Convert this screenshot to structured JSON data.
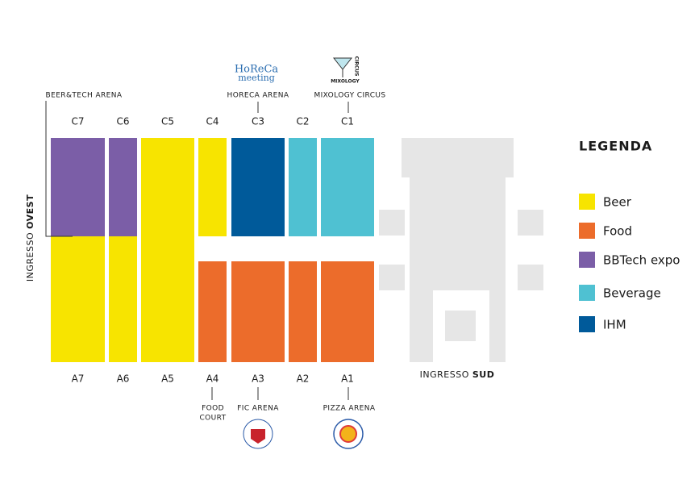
{
  "halls": [
    {
      "label": "C7",
      "color": "#7b5ea7"
    },
    {
      "label": "C6",
      "color": "#7b5ea7"
    },
    {
      "label": "C5",
      "color": "#f7e400"
    },
    {
      "label": "C4",
      "color": "#f7e400"
    },
    {
      "label": "C3",
      "color": "#005a9a"
    },
    {
      "label": "C2",
      "color": "#4fc1d2"
    },
    {
      "label": "C1",
      "color": "#4fc1d2"
    },
    {
      "label": "A7",
      "color": "#f7e400"
    },
    {
      "label": "A6",
      "color": "#f7e400"
    },
    {
      "label": "A5",
      "color": "#f7e400"
    },
    {
      "label": "A4",
      "color": "#ec6c2b"
    },
    {
      "label": "A3",
      "color": "#ec6c2b"
    },
    {
      "label": "A2",
      "color": "#ec6c2b"
    },
    {
      "label": "A1",
      "color": "#ec6c2b"
    }
  ],
  "arenas": {
    "beer_tech": "BEER&TECH ARENA",
    "horeca": "HORECA ARENA",
    "mixology": "MIXOLOGY CIRCUS",
    "food_court": [
      "FOOD",
      "COURT"
    ],
    "fic": "FIC ARENA",
    "pizza": "PIZZA ARENA"
  },
  "logos": {
    "horeca": [
      "HoReCa",
      "meeting"
    ],
    "mixology": [
      "MIXOLOGY",
      "CIRCUS"
    ]
  },
  "entrances": {
    "west": {
      "text": "INGRESSO ",
      "bold": "OVEST"
    },
    "south": {
      "text": "INGRESSO ",
      "bold": "SUD"
    }
  },
  "legend": {
    "title": "LEGENDA",
    "items": [
      {
        "label": "Beer",
        "color": "#f7e400"
      },
      {
        "label": "Food",
        "color": "#ec6c2b"
      },
      {
        "label": "BBTech expo",
        "color": "#7b5ea7"
      },
      {
        "label": "Beverage",
        "color": "#4fc1d2"
      },
      {
        "label": "IHM",
        "color": "#005a9a"
      }
    ]
  }
}
